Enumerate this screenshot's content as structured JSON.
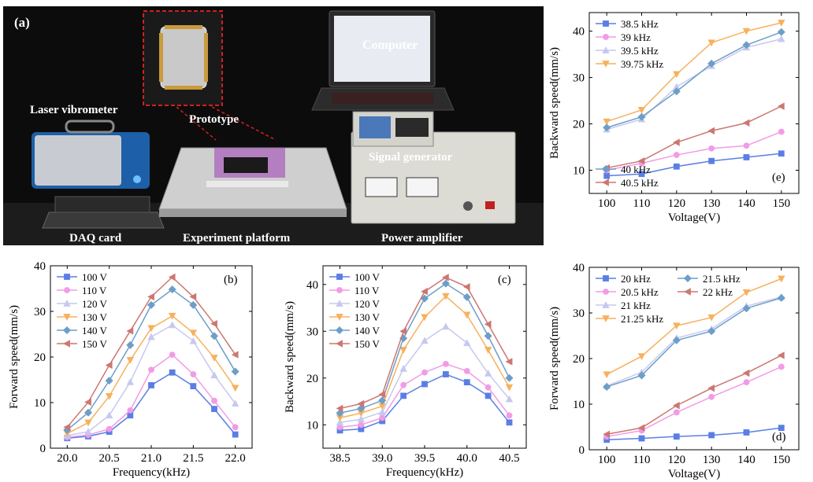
{
  "photo": {
    "label": "(a)",
    "callouts": {
      "computer": "Computer",
      "laser": "Laser vibrometer",
      "prototype": "Prototype",
      "signal": "Signal generator",
      "daq": "DAQ card",
      "platform": "Experiment platform",
      "amplifier": "Power amplifier"
    },
    "colors": {
      "background": "#101010",
      "callout_text": "#ffffff",
      "prototype_frame": "#d02020",
      "device_blue": "#1d5fa8",
      "amplifier_body": "#d8d8d2"
    }
  },
  "chart_data": [
    {
      "id": "e",
      "type": "line",
      "panel_label": "(e)",
      "xlabel": "Voltage(V)",
      "ylabel": "Backward speed(mm/s)",
      "x": [
        100,
        110,
        120,
        130,
        140,
        150
      ],
      "xlim": [
        95,
        155
      ],
      "ylim": [
        5,
        44
      ],
      "xticks": [
        100,
        110,
        120,
        130,
        140,
        150
      ],
      "yticks": [
        10,
        20,
        30,
        40
      ],
      "legend_groups": [
        {
          "placement": "top-left",
          "series": [
            0,
            1,
            2,
            3
          ]
        },
        {
          "placement": "bottom-left",
          "series": [
            4,
            5
          ]
        }
      ],
      "series": [
        {
          "name": "38.5 kHz",
          "color": "#5b7ee5",
          "marker": "square",
          "values": [
            8.8,
            9.2,
            10.8,
            12.0,
            12.8,
            13.6
          ]
        },
        {
          "name": "39 kHz",
          "color": "#f29be6",
          "marker": "circle",
          "values": [
            10.0,
            11.5,
            13.3,
            14.7,
            15.3,
            18.3
          ]
        },
        {
          "name": "39.5 kHz",
          "color": "#c6c9ee",
          "marker": "triangle-up",
          "values": [
            18.8,
            21.0,
            28.0,
            32.5,
            36.5,
            38.3
          ]
        },
        {
          "name": "39.75 kHz",
          "color": "#f7b15d",
          "marker": "triangle-down",
          "values": [
            20.5,
            23.0,
            30.7,
            37.5,
            40.0,
            41.8
          ]
        },
        {
          "name": "40 kHz",
          "color": "#6d9ec9",
          "marker": "diamond",
          "values": [
            19.2,
            21.5,
            27.0,
            33.0,
            37.0,
            39.8
          ]
        },
        {
          "name": "40.5 kHz",
          "color": "#cc7771",
          "marker": "triangle-left",
          "values": [
            10.5,
            12.0,
            16.0,
            18.5,
            20.2,
            23.8
          ]
        }
      ]
    },
    {
      "id": "b",
      "type": "line",
      "panel_label": "(b)",
      "xlabel": "Frequency(kHz)",
      "ylabel": "Forward speed(mm/s)",
      "x": [
        20.0,
        20.25,
        20.5,
        20.75,
        21.0,
        21.25,
        21.5,
        21.75,
        22.0
      ],
      "xlim": [
        19.8,
        22.2
      ],
      "ylim": [
        0,
        40
      ],
      "xticks": [
        20.0,
        20.5,
        21.0,
        21.5,
        22.0
      ],
      "xticklabels": [
        "20.0",
        "20.5",
        "21.0",
        "21.5",
        "22.0"
      ],
      "yticks": [
        0,
        10,
        20,
        30,
        40
      ],
      "legend_groups": [
        {
          "placement": "top-left",
          "series": [
            0,
            1,
            2,
            3,
            4,
            5
          ]
        }
      ],
      "series": [
        {
          "name": "100 V",
          "color": "#5b7ee5",
          "marker": "square",
          "values": [
            2.2,
            2.6,
            3.6,
            7.2,
            13.8,
            16.6,
            13.6,
            8.6,
            3.0
          ]
        },
        {
          "name": "110 V",
          "color": "#f29be6",
          "marker": "circle",
          "values": [
            2.4,
            2.9,
            4.2,
            8.3,
            17.2,
            20.5,
            16.2,
            10.4,
            4.6
          ]
        },
        {
          "name": "120 V",
          "color": "#c6c9ee",
          "marker": "triangle-up",
          "values": [
            2.8,
            3.6,
            7.2,
            14.5,
            24.4,
            27.0,
            23.5,
            16.0,
            9.8
          ]
        },
        {
          "name": "130 V",
          "color": "#f7b15d",
          "marker": "triangle-down",
          "values": [
            3.2,
            5.6,
            11.4,
            19.3,
            26.3,
            29.0,
            25.3,
            19.8,
            13.2
          ]
        },
        {
          "name": "140 V",
          "color": "#6d9ec9",
          "marker": "diamond",
          "values": [
            4.0,
            7.8,
            14.8,
            22.6,
            31.4,
            34.8,
            31.4,
            24.6,
            16.8
          ]
        },
        {
          "name": "150 V",
          "color": "#cc7771",
          "marker": "triangle-left",
          "values": [
            4.6,
            10.1,
            18.2,
            25.7,
            33.2,
            37.5,
            33.2,
            27.3,
            20.5
          ]
        }
      ]
    },
    {
      "id": "c",
      "type": "line",
      "panel_label": "(c)",
      "xlabel": "Frequency(kHz)",
      "ylabel": "Backward speed(mm/s)",
      "x": [
        38.5,
        38.75,
        39.0,
        39.25,
        39.5,
        39.75,
        40.0,
        40.25,
        40.5
      ],
      "xlim": [
        38.3,
        40.7
      ],
      "ylim": [
        5,
        44
      ],
      "xticks": [
        38.5,
        39.0,
        39.5,
        40.0,
        40.5
      ],
      "xticklabels": [
        "38.5",
        "39.0",
        "39.5",
        "40.0",
        "40.5"
      ],
      "yticks": [
        10,
        20,
        30,
        40
      ],
      "legend_groups": [
        {
          "placement": "top-left",
          "series": [
            0,
            1,
            2,
            3,
            4,
            5
          ]
        }
      ],
      "series": [
        {
          "name": "100 V",
          "color": "#5b7ee5",
          "marker": "square",
          "values": [
            8.8,
            9.1,
            10.8,
            16.2,
            18.7,
            20.8,
            19.1,
            16.2,
            10.5
          ]
        },
        {
          "name": "110 V",
          "color": "#f29be6",
          "marker": "circle",
          "values": [
            9.5,
            10.0,
            11.5,
            18.5,
            21.2,
            23.0,
            21.5,
            18.0,
            12.0
          ]
        },
        {
          "name": "120 V",
          "color": "#c6c9ee",
          "marker": "triangle-up",
          "values": [
            10.5,
            11.2,
            12.7,
            22.0,
            28.0,
            31.0,
            27.5,
            21.0,
            15.5
          ]
        },
        {
          "name": "130 V",
          "color": "#f7b15d",
          "marker": "triangle-down",
          "values": [
            11.5,
            12.5,
            14.0,
            26.0,
            33.0,
            37.5,
            33.5,
            26.0,
            18.0
          ]
        },
        {
          "name": "140 V",
          "color": "#6d9ec9",
          "marker": "diamond",
          "values": [
            12.5,
            13.5,
            15.2,
            28.5,
            37.0,
            40.2,
            37.3,
            29.0,
            20.0
          ]
        },
        {
          "name": "150 V",
          "color": "#cc7771",
          "marker": "triangle-left",
          "values": [
            13.5,
            14.5,
            16.5,
            30.0,
            38.5,
            41.5,
            39.5,
            31.5,
            23.5
          ]
        }
      ]
    },
    {
      "id": "d",
      "type": "line",
      "panel_label": "(d)",
      "xlabel": "Voltage(V)",
      "ylabel": "Forward speed(mm/s)",
      "x": [
        100,
        110,
        120,
        130,
        140,
        150
      ],
      "xlim": [
        95,
        155
      ],
      "ylim": [
        0,
        40
      ],
      "xticks": [
        100,
        110,
        120,
        130,
        140,
        150
      ],
      "yticks": [
        0,
        10,
        20,
        30,
        40
      ],
      "legend_groups": [
        {
          "placement": "top-left",
          "series": [
            0,
            1,
            2,
            3
          ]
        },
        {
          "placement": "top-center",
          "series": [
            4,
            5
          ]
        }
      ],
      "series": [
        {
          "name": "20 kHz",
          "color": "#5b7ee5",
          "marker": "square",
          "values": [
            2.2,
            2.5,
            2.9,
            3.2,
            3.8,
            4.8
          ]
        },
        {
          "name": "20.5 kHz",
          "color": "#f29be6",
          "marker": "circle",
          "values": [
            2.9,
            4.2,
            8.2,
            11.6,
            14.8,
            18.2
          ]
        },
        {
          "name": "21 kHz",
          "color": "#c6c9ee",
          "marker": "triangle-up",
          "values": [
            14.0,
            17.0,
            24.5,
            26.5,
            31.5,
            33.5
          ]
        },
        {
          "name": "21.25 kHz",
          "color": "#f7b15d",
          "marker": "triangle-down",
          "values": [
            16.5,
            20.5,
            27.2,
            29.0,
            34.5,
            37.5
          ]
        },
        {
          "name": "21.5 kHz",
          "color": "#6d9ec9",
          "marker": "diamond",
          "values": [
            13.8,
            16.3,
            24.0,
            26.0,
            31.0,
            33.3
          ]
        },
        {
          "name": "22 kHz",
          "color": "#cc7771",
          "marker": "triangle-left",
          "values": [
            3.4,
            4.8,
            9.7,
            13.5,
            16.8,
            20.7
          ]
        }
      ]
    }
  ]
}
